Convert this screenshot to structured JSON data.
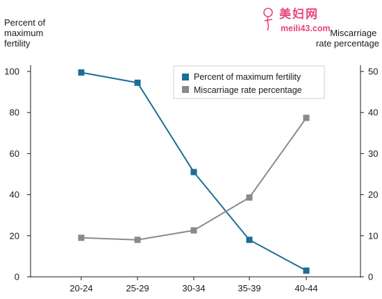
{
  "watermark": {
    "brand": "美妇网",
    "url": "meili43.com"
  },
  "chart_data": {
    "type": "line",
    "categories": [
      "20-24",
      "25-29",
      "30-34",
      "35-39",
      "40-44"
    ],
    "y_left": {
      "title_lines": [
        "Percent of",
        "maximum",
        "fertility"
      ],
      "ylim": [
        0,
        100
      ],
      "ticks": [
        0,
        20,
        40,
        60,
        80,
        100
      ]
    },
    "y_right": {
      "title_lines": [
        "Miscarriage",
        "rate percentage"
      ],
      "ylim": [
        0,
        50
      ],
      "ticks": [
        0,
        10,
        20,
        30,
        40,
        50
      ]
    },
    "series": [
      {
        "name": "Percent of maximum fertility",
        "axis": "left",
        "color": "#1d6d96",
        "values": [
          99.5,
          94.5,
          51,
          18,
          3
        ]
      },
      {
        "name": "Miscarriage rate percentage",
        "axis": "right",
        "color": "#8a8a8a",
        "values": [
          9.5,
          9,
          11.3,
          19.3,
          38.7
        ]
      }
    ],
    "legend_position": "top-right",
    "grid": false
  }
}
